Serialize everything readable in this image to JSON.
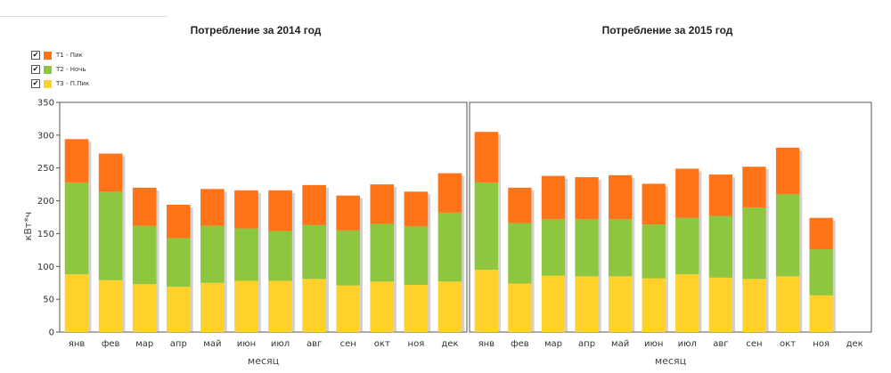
{
  "legend": [
    {
      "label": "Т1 - Пик",
      "color": "#ff7418",
      "checked": true
    },
    {
      "label": "Т2 - Ночь",
      "color": "#8ec63f",
      "checked": true
    },
    {
      "label": "Т3 - П.Пик",
      "color": "#ffd12a",
      "checked": true
    }
  ],
  "checkmark_glyph": "✔",
  "chart_data": [
    {
      "type": "bar",
      "stacked": true,
      "title": "Потребление за 2014 год",
      "xlabel": "месяц",
      "ylabel": "кВт*ч",
      "ylim": [
        0,
        350
      ],
      "yticks": [
        0,
        50,
        100,
        150,
        200,
        250,
        300,
        350
      ],
      "categories": [
        "янв",
        "фев",
        "мар",
        "апр",
        "май",
        "июн",
        "июл",
        "авг",
        "сен",
        "окт",
        "ноя",
        "дек"
      ],
      "series": [
        {
          "name": "Т3 - П.Пик",
          "color": "#ffd12a",
          "values": [
            88,
            79,
            73,
            69,
            75,
            78,
            78,
            81,
            71,
            77,
            72,
            77
          ]
        },
        {
          "name": "Т2 - Ночь",
          "color": "#8ec63f",
          "values": [
            140,
            135,
            89,
            74,
            87,
            80,
            76,
            82,
            84,
            88,
            89,
            105
          ]
        },
        {
          "name": "Т1 - Пик",
          "color": "#ff7418",
          "values": [
            66,
            58,
            58,
            51,
            56,
            58,
            62,
            61,
            53,
            60,
            53,
            60
          ]
        }
      ]
    },
    {
      "type": "bar",
      "stacked": true,
      "title": "Потребление за 2015 год",
      "xlabel": "месяц",
      "ylabel": "",
      "ylim": [
        0,
        350
      ],
      "categories": [
        "янв",
        "фев",
        "мар",
        "апр",
        "май",
        "июн",
        "июл",
        "авг",
        "сен",
        "окт",
        "ноя",
        "дек"
      ],
      "series": [
        {
          "name": "Т3 - П.Пик",
          "color": "#ffd12a",
          "values": [
            95,
            74,
            86,
            85,
            85,
            82,
            88,
            83,
            81,
            85,
            56,
            0
          ]
        },
        {
          "name": "Т2 - Ночь",
          "color": "#8ec63f",
          "values": [
            133,
            92,
            86,
            87,
            87,
            82,
            86,
            94,
            109,
            125,
            70,
            0
          ]
        },
        {
          "name": "Т1 - Пик",
          "color": "#ff7418",
          "values": [
            77,
            54,
            66,
            64,
            67,
            62,
            75,
            63,
            62,
            71,
            48,
            0
          ]
        }
      ]
    }
  ]
}
